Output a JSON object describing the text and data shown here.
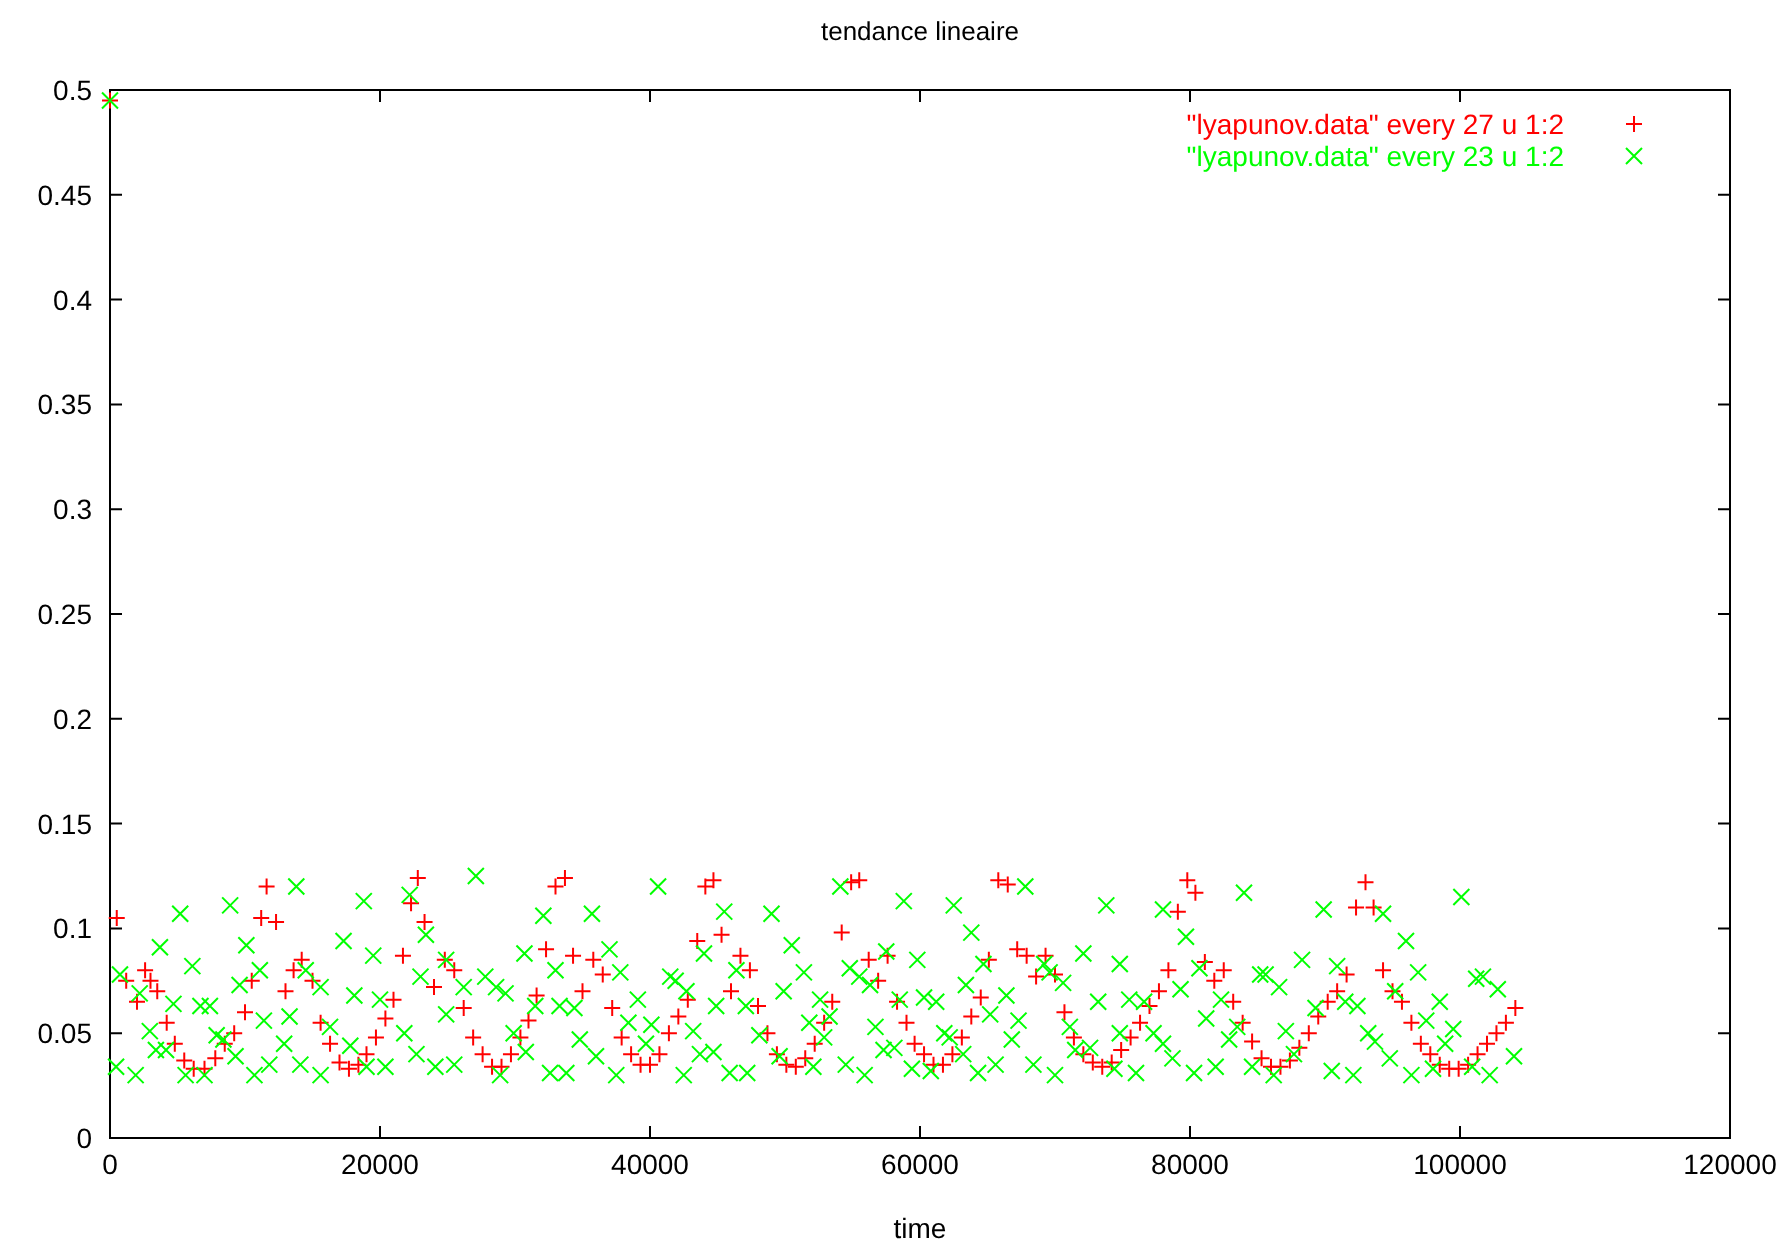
{
  "chart_data": {
    "type": "scatter",
    "title": "tendance lineaire",
    "xlabel": "time",
    "xlim": [
      0,
      120000
    ],
    "xticks": [
      0,
      20000,
      40000,
      60000,
      80000,
      100000,
      120000
    ],
    "ylim": [
      0,
      0.5
    ],
    "yticks": [
      0,
      0.05,
      0.1,
      0.15,
      0.2,
      0.25,
      0.3,
      0.35,
      0.4,
      0.45,
      0.5
    ],
    "legend": "top right",
    "grid": false,
    "series": [
      {
        "name": "\"lyapunov.data\" every 27 u 1:2",
        "color": "#ff0000",
        "marker": "cross",
        "x": [
          0,
          500,
          1200,
          2000,
          2600,
          3000,
          3500,
          4200,
          4800,
          5500,
          6200,
          7000,
          7800,
          8500,
          9200,
          10000,
          10500,
          11200,
          11600,
          12300,
          13000,
          13600,
          14200,
          15000,
          15600,
          16300,
          17000,
          17700,
          18400,
          19000,
          19700,
          20400,
          21000,
          21700,
          22300,
          22800,
          23300,
          24000,
          24800,
          25500,
          26200,
          26900,
          27600,
          28300,
          29000,
          29700,
          30400,
          31000,
          31600,
          32300,
          33000,
          33700,
          34300,
          35000,
          35800,
          36500,
          37200,
          37900,
          38600,
          39300,
          40000,
          40700,
          41400,
          42100,
          42800,
          43500,
          44100,
          44700,
          45300,
          46000,
          46700,
          47400,
          48000,
          48700,
          49400,
          50100,
          50800,
          51500,
          52200,
          52900,
          53500,
          54200,
          54900,
          55500,
          56200,
          56900,
          57600,
          58300,
          59000,
          59600,
          60300,
          61000,
          61700,
          62400,
          63100,
          63800,
          64500,
          65100,
          65800,
          66500,
          67200,
          67900,
          68600,
          69300,
          70000,
          70700,
          71400,
          72100,
          72800,
          73500,
          74200,
          74900,
          75600,
          76300,
          77000,
          77700,
          78400,
          79100,
          79800,
          80400,
          81100,
          81800,
          82500,
          83200,
          83900,
          84600,
          85300,
          86000,
          86700,
          87400,
          88100,
          88800,
          89500,
          90200,
          90900,
          91600,
          92300,
          93000,
          93600,
          94300,
          95000,
          95700,
          96400,
          97100,
          97800,
          98500,
          99200,
          99900,
          100600,
          101300,
          102000,
          102700,
          103400,
          104100
        ],
        "values": [
          0.495,
          0.105,
          0.075,
          0.065,
          0.08,
          0.075,
          0.07,
          0.055,
          0.045,
          0.037,
          0.033,
          0.033,
          0.038,
          0.045,
          0.05,
          0.06,
          0.075,
          0.105,
          0.12,
          0.103,
          0.07,
          0.08,
          0.085,
          0.075,
          0.055,
          0.045,
          0.036,
          0.033,
          0.035,
          0.04,
          0.048,
          0.057,
          0.066,
          0.087,
          0.112,
          0.124,
          0.103,
          0.072,
          0.085,
          0.08,
          0.062,
          0.048,
          0.04,
          0.034,
          0.034,
          0.04,
          0.048,
          0.056,
          0.068,
          0.09,
          0.12,
          0.124,
          0.087,
          0.07,
          0.085,
          0.078,
          0.062,
          0.048,
          0.04,
          0.035,
          0.035,
          0.04,
          0.05,
          0.058,
          0.066,
          0.094,
          0.12,
          0.123,
          0.097,
          0.07,
          0.087,
          0.08,
          0.063,
          0.05,
          0.04,
          0.035,
          0.034,
          0.038,
          0.045,
          0.055,
          0.065,
          0.098,
          0.122,
          0.123,
          0.085,
          0.075,
          0.087,
          0.065,
          0.055,
          0.045,
          0.04,
          0.035,
          0.035,
          0.04,
          0.048,
          0.058,
          0.067,
          0.085,
          0.123,
          0.121,
          0.09,
          0.087,
          0.077,
          0.087,
          0.078,
          0.06,
          0.048,
          0.04,
          0.036,
          0.034,
          0.036,
          0.042,
          0.048,
          0.055,
          0.063,
          0.07,
          0.08,
          0.108,
          0.123,
          0.117,
          0.084,
          0.075,
          0.08,
          0.065,
          0.055,
          0.046,
          0.038,
          0.034,
          0.034,
          0.037,
          0.043,
          0.05,
          0.058,
          0.065,
          0.07,
          0.078,
          0.11,
          0.122,
          0.11,
          0.08,
          0.07,
          0.065,
          0.055,
          0.045,
          0.04,
          0.035,
          0.033,
          0.033,
          0.035,
          0.04,
          0.045,
          0.05,
          0.055,
          0.062
        ]
      },
      {
        "name": "\"lyapunov.data\" every 23 u 1:2",
        "color": "#00ff00",
        "marker": "x",
        "x": [
          0,
          740,
          450,
          1900,
          2200,
          2950,
          3700,
          3400,
          4150,
          5200,
          4700,
          6100,
          5600,
          6700,
          7400,
          7000,
          7900,
          8400,
          8900,
          9600,
          10100,
          11100,
          10700,
          9300,
          11400,
          11800,
          12900,
          13300,
          13800,
          14500,
          15600,
          14100,
          15600,
          16300,
          17300,
          18100,
          17800,
          18800,
          19500,
          19000,
          20400,
          20000,
          21800,
          22200,
          23400,
          23000,
          22700,
          24900,
          24900,
          24100,
          25500,
          26200,
          27100,
          32100,
          35700,
          40600,
          45500,
          49000,
          30700,
          33000,
          37000,
          27800,
          28600,
          29300,
          37800,
          41500,
          41900,
          42700,
          44000,
          46400,
          50500,
          51400,
          49900,
          52600,
          39100,
          33300,
          34400,
          31500,
          38400,
          40100,
          29900,
          34800,
          39700,
          43200,
          44900,
          47100,
          48100,
          51800,
          30800,
          36000,
          43700,
          44700,
          49600,
          32600,
          33800,
          37500,
          42500,
          45900,
          47200,
          28900,
          52100,
          54100,
          58800,
          62500,
          67800,
          73800,
          78000,
          63800,
          57500,
          59800,
          64700,
          72100,
          74800,
          54800,
          55500,
          56300,
          63400,
          69200,
          69600,
          70600,
          79300,
          58500,
          60300,
          61200,
          66400,
          73200,
          75500,
          76600,
          53300,
          56700,
          65200,
          67300,
          71100,
          52900,
          61800,
          62200,
          66800,
          74800,
          77300,
          57300,
          58100,
          63200,
          71500,
          72600,
          78000,
          54500,
          59400,
          65600,
          68400,
          55900,
          60800,
          64300,
          70000,
          74400,
          76000,
          78700,
          84000,
          89900,
          94300,
          100100,
          79700,
          96000,
          88300,
          90900,
          80700,
          85200,
          85600,
          86600,
          96900,
          101200,
          101700,
          102800,
          95200,
          82300,
          91500,
          92400,
          89300,
          98500,
          81200,
          83500,
          87100,
          97500,
          99500,
          82900,
          93200,
          93700,
          87700,
          94800,
          98900,
          104000,
          80300,
          81900,
          84600,
          90500,
          92100,
          96400,
          98000,
          100900,
          102200,
          86200
        ],
        "values": [
          0.495,
          0.078,
          0.034,
          0.03,
          0.069,
          0.051,
          0.091,
          0.042,
          0.042,
          0.107,
          0.064,
          0.082,
          0.03,
          0.063,
          0.063,
          0.03,
          0.049,
          0.047,
          0.111,
          0.073,
          0.092,
          0.08,
          0.03,
          0.039,
          0.056,
          0.035,
          0.045,
          0.058,
          0.12,
          0.08,
          0.072,
          0.035,
          0.03,
          0.053,
          0.094,
          0.068,
          0.044,
          0.113,
          0.087,
          0.034,
          0.034,
          0.066,
          0.05,
          0.116,
          0.097,
          0.077,
          0.04,
          0.085,
          0.059,
          0.034,
          0.035,
          0.072,
          0.125,
          0.106,
          0.107,
          0.12,
          0.108,
          0.107,
          0.088,
          0.08,
          0.09,
          0.077,
          0.072,
          0.069,
          0.079,
          0.077,
          0.075,
          0.07,
          0.088,
          0.08,
          0.092,
          0.079,
          0.07,
          0.066,
          0.066,
          0.063,
          0.062,
          0.063,
          0.055,
          0.054,
          0.05,
          0.047,
          0.045,
          0.051,
          0.063,
          0.063,
          0.049,
          0.055,
          0.041,
          0.039,
          0.04,
          0.041,
          0.039,
          0.031,
          0.031,
          0.03,
          0.03,
          0.031,
          0.031,
          0.03,
          0.034,
          0.12,
          0.113,
          0.111,
          0.12,
          0.111,
          0.109,
          0.098,
          0.089,
          0.085,
          0.083,
          0.088,
          0.083,
          0.081,
          0.077,
          0.073,
          0.073,
          0.083,
          0.079,
          0.074,
          0.071,
          0.066,
          0.067,
          0.065,
          0.068,
          0.065,
          0.066,
          0.065,
          0.058,
          0.053,
          0.059,
          0.056,
          0.053,
          0.048,
          0.05,
          0.048,
          0.047,
          0.05,
          0.05,
          0.042,
          0.043,
          0.04,
          0.042,
          0.043,
          0.045,
          0.035,
          0.033,
          0.035,
          0.035,
          0.03,
          0.032,
          0.031,
          0.03,
          0.033,
          0.031,
          0.038,
          0.117,
          0.109,
          0.107,
          0.115,
          0.096,
          0.094,
          0.085,
          0.082,
          0.081,
          0.078,
          0.078,
          0.072,
          0.079,
          0.076,
          0.077,
          0.071,
          0.07,
          0.066,
          0.065,
          0.063,
          0.062,
          0.065,
          0.057,
          0.053,
          0.051,
          0.056,
          0.052,
          0.047,
          0.05,
          0.046,
          0.04,
          0.038,
          0.045,
          0.039,
          0.031,
          0.034,
          0.034,
          0.032,
          0.03,
          0.03,
          0.033,
          0.034,
          0.03,
          0.03
        ]
      }
    ]
  }
}
